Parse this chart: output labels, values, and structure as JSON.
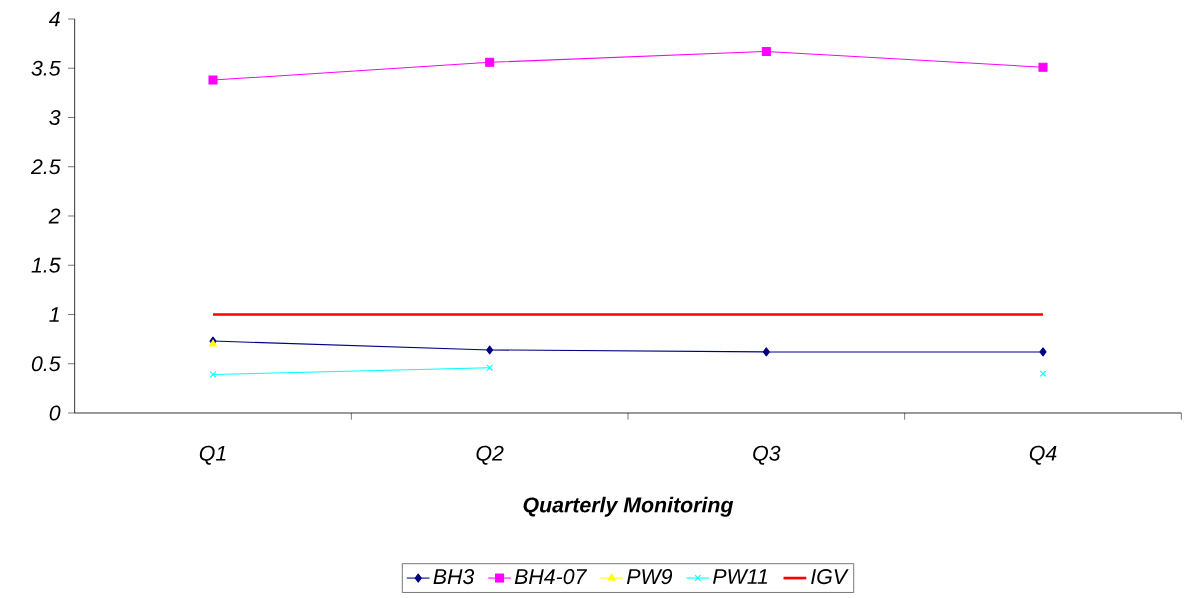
{
  "chart_data": {
    "type": "line",
    "xlabel": "Quarterly Monitoring",
    "categories": [
      "Q1",
      "Q2",
      "Q3",
      "Q4"
    ],
    "ylim": [
      0,
      4
    ],
    "yticks": [
      0,
      0.5,
      1,
      1.5,
      2,
      2.5,
      3,
      3.5,
      4
    ],
    "grid": false,
    "legend": "bottom",
    "line_style": "solid",
    "series": [
      {
        "name": "BH3",
        "color": "#000080",
        "marker": "diamond",
        "values": [
          0.73,
          0.64,
          0.62,
          0.62
        ]
      },
      {
        "name": "BH4-07",
        "color": "#ff00ff",
        "marker": "square",
        "values": [
          3.38,
          3.56,
          3.67,
          3.51
        ]
      },
      {
        "name": "PW9",
        "color": "#ffff00",
        "marker": "triangle",
        "values": [
          0.7,
          null,
          null,
          null
        ]
      },
      {
        "name": "PW11",
        "color": "#00ffff",
        "marker": "cross",
        "values": [
          0.39,
          0.46,
          null,
          0.4
        ]
      },
      {
        "name": "IGV",
        "color": "#ff0000",
        "marker": "none",
        "values": [
          1,
          1,
          1,
          1
        ]
      }
    ]
  }
}
